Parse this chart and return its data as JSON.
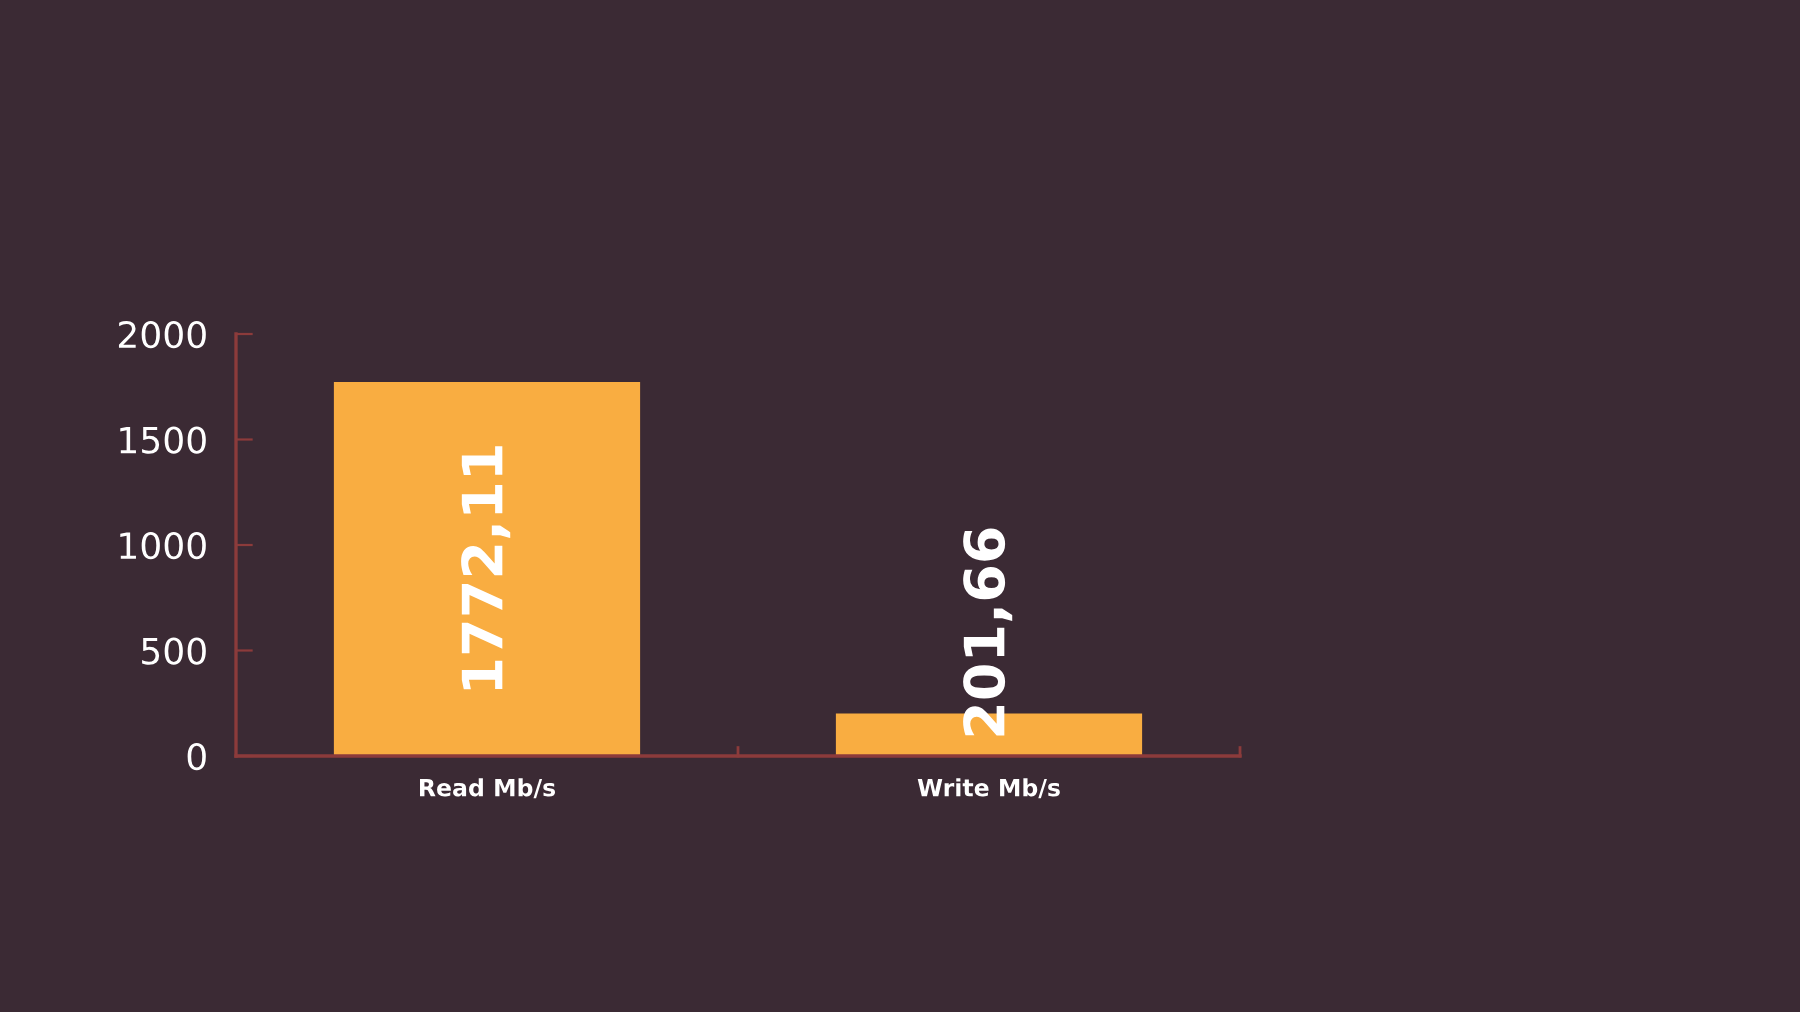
{
  "chart_data": {
    "type": "bar",
    "categories": [
      "Read Mb/s",
      "Write Mb/s"
    ],
    "values": [
      1772.11,
      201.66
    ],
    "color": "#f9ad41",
    "value_labels": [
      "1772,11",
      "201,66"
    ],
    "ylim": [
      0,
      2000
    ],
    "yticks": [
      0,
      500,
      1000,
      1500,
      2000
    ]
  }
}
